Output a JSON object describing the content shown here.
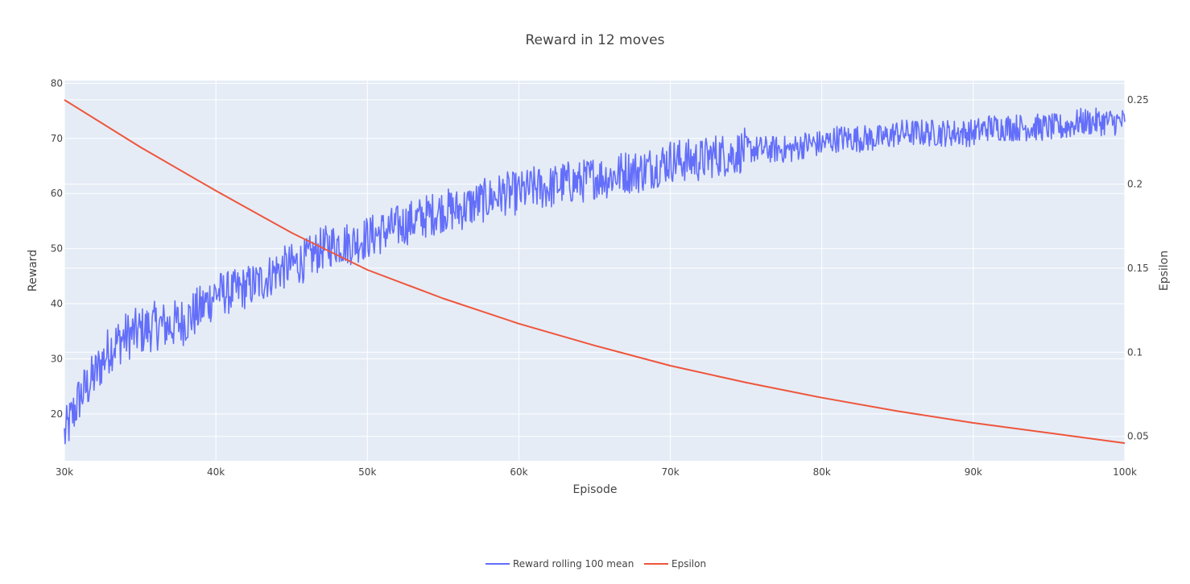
{
  "chart_data": {
    "type": "line",
    "title": "Reward in 12 moves",
    "xlabel": "Episode",
    "ylabel": "Reward",
    "y2label": "Epsilon",
    "xlim": [
      30000,
      100000
    ],
    "ylim": [
      11.5,
      80.5
    ],
    "y2lim": [
      0.0355,
      0.2615
    ],
    "x_ticks": [
      30000,
      40000,
      50000,
      60000,
      70000,
      80000,
      90000,
      100000
    ],
    "x_tick_labels": [
      "30k",
      "40k",
      "50k",
      "60k",
      "70k",
      "80k",
      "90k",
      "100k"
    ],
    "y_ticks": [
      20,
      30,
      40,
      50,
      60,
      70,
      80
    ],
    "y_tick_labels": [
      "20",
      "30",
      "40",
      "50",
      "60",
      "70",
      "80"
    ],
    "y2_ticks": [
      0.05,
      0.1,
      0.15,
      0.2,
      0.25
    ],
    "y2_tick_labels": [
      "0.05",
      "0.1",
      "0.15",
      "0.2",
      "0.25"
    ],
    "grid": true,
    "legend_position": "bottom-center",
    "series": [
      {
        "name": "Reward rolling 100 mean",
        "axis": "y",
        "color": "#636efa",
        "x": [
          30000,
          31000,
          32000,
          33000,
          34000,
          35000,
          36000,
          37000,
          38000,
          39000,
          40000,
          41000,
          42000,
          43000,
          44000,
          45000,
          46000,
          47000,
          48000,
          49000,
          50000,
          51000,
          52000,
          53000,
          54000,
          55000,
          56000,
          57000,
          58000,
          59000,
          60000,
          61000,
          62000,
          63000,
          64000,
          65000,
          66000,
          67000,
          68000,
          69000,
          70000,
          71000,
          72000,
          73000,
          74000,
          75000,
          76000,
          77000,
          78000,
          79000,
          80000,
          81000,
          82000,
          83000,
          84000,
          85000,
          86000,
          87000,
          88000,
          89000,
          90000,
          91000,
          92000,
          93000,
          94000,
          95000,
          96000,
          97000,
          98000,
          99000,
          100000
        ],
        "y": [
          16,
          23,
          27,
          32,
          34,
          35,
          36,
          36,
          37,
          39,
          42,
          42,
          43,
          44,
          46,
          47,
          48,
          50,
          51,
          51,
          52,
          53,
          54,
          55,
          56,
          57,
          57,
          58,
          59,
          60,
          60,
          61,
          61,
          62,
          62,
          63,
          63,
          64,
          64,
          65,
          66,
          66,
          66,
          67,
          67,
          68,
          68,
          68,
          68,
          69,
          69,
          70,
          70,
          70,
          70,
          71,
          71,
          71,
          71,
          71,
          71,
          72,
          72,
          72,
          72,
          72,
          72,
          73,
          73,
          73,
          73
        ]
      },
      {
        "name": "Epsilon",
        "axis": "y2",
        "color": "#ef553b",
        "x": [
          30000,
          35000,
          40000,
          45000,
          50000,
          55000,
          60000,
          65000,
          70000,
          75000,
          80000,
          85000,
          90000,
          95000,
          100000
        ],
        "y": [
          0.25,
          0.222,
          0.196,
          0.171,
          0.149,
          0.132,
          0.117,
          0.104,
          0.092,
          0.082,
          0.073,
          0.065,
          0.058,
          0.052,
          0.046
        ]
      }
    ]
  }
}
